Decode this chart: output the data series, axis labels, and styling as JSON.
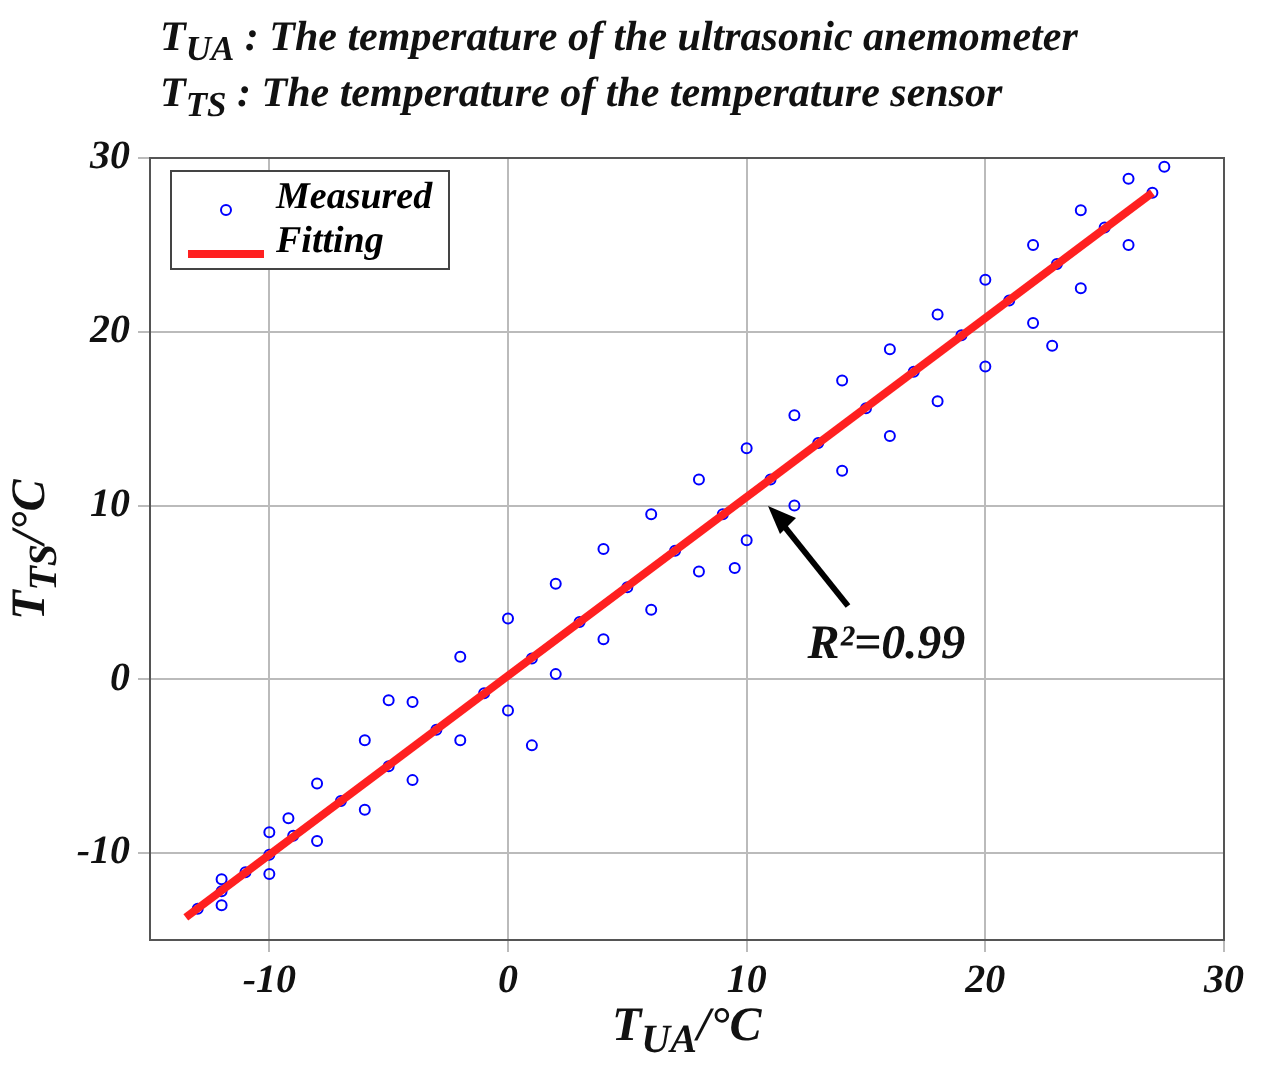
{
  "chart_data": {
    "type": "scatter",
    "title": "T$_{UA}$ :  The temperature of the ultrasonic anemometer",
    "subtitle": "T$_{TS}$ :  The temperature of the temperature sensor",
    "xlabel": "T$_{UA}$/°C",
    "ylabel": "T$_{TS}$/°C",
    "xlim": [
      -15,
      30
    ],
    "xticks": [
      -10,
      0,
      10,
      20,
      30
    ],
    "ylim": [
      -15,
      30
    ],
    "yticks": [
      -10,
      0,
      10,
      20,
      30
    ],
    "grid": true,
    "legend": "top left",
    "annotations": [
      "R²=0.99"
    ],
    "series": [
      {
        "name": "Measured",
        "marker": "circle",
        "color": "#0000ff",
        "x": [
          -13,
          -12,
          -11,
          -10,
          -9,
          -7,
          -5,
          -3,
          -1,
          1,
          3,
          5,
          7,
          9,
          11,
          13,
          15,
          17,
          19,
          21,
          23,
          25,
          27,
          -12,
          -10,
          -8,
          -6,
          -4,
          -2,
          0,
          2,
          4,
          6,
          8,
          10,
          12,
          14,
          16,
          18,
          20,
          22,
          24,
          26,
          -12,
          -10,
          -8,
          -6,
          -4,
          -2,
          0,
          2,
          4,
          6,
          8,
          10,
          12,
          14,
          16,
          18,
          20,
          22,
          24,
          26,
          -9.2,
          -5,
          9.5,
          22.8,
          27.5,
          1
        ],
        "values": [
          -13.2,
          -12.2,
          -11.1,
          -10.1,
          -9,
          -7,
          -5,
          -2.9,
          -0.8,
          1.2,
          3.3,
          5.3,
          7.4,
          9.5,
          11.5,
          13.6,
          15.6,
          17.7,
          19.8,
          21.8,
          23.9,
          26,
          28,
          -11.5,
          -8.8,
          -6,
          -3.5,
          -1.3,
          1.3,
          3.5,
          5.5,
          7.5,
          9.5,
          11.5,
          13.3,
          15.2,
          17.2,
          19,
          21,
          23,
          25,
          27,
          28.8,
          -13,
          -11.2,
          -9.3,
          -7.5,
          -5.8,
          -3.5,
          -1.8,
          0.3,
          2.3,
          4,
          6.2,
          8,
          10,
          12,
          14,
          16,
          18,
          20.5,
          22.5,
          25,
          -8,
          -1.2,
          6.4,
          19.2,
          29.5,
          -3.8
        ]
      },
      {
        "name": "Fitting",
        "type": "line",
        "marker": "none",
        "color": "#ff2020",
        "x": [
          -13.5,
          27
        ],
        "values": [
          -13.7,
          28
        ]
      }
    ]
  }
}
